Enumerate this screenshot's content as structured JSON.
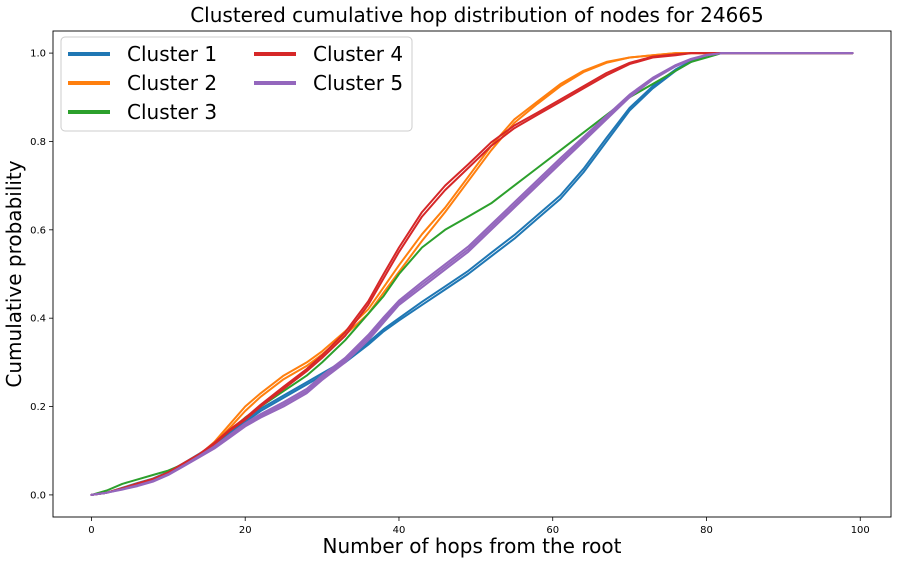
{
  "chart_data": {
    "type": "line",
    "title": "Clustered cumulative hop distribution of nodes for 24665",
    "xlabel": "Number of hops from the root",
    "ylabel": "Cumulative probability",
    "xlim": [
      -5,
      104
    ],
    "ylim": [
      -0.05,
      1.05
    ],
    "xticks": [
      0,
      20,
      40,
      60,
      80,
      100
    ],
    "xtick_labels": [
      "0",
      "20",
      "40",
      "60",
      "80",
      "100"
    ],
    "yticks": [
      0.0,
      0.2,
      0.4,
      0.6,
      0.8,
      1.0
    ],
    "ytick_labels": [
      "0.0",
      "0.2",
      "0.4",
      "0.6",
      "0.8",
      "1.0"
    ],
    "grid": false,
    "legend": {
      "placement": "top-left",
      "columns": 2
    },
    "series": [
      {
        "name": "Cluster 1",
        "color": "#1f77b4",
        "lines": [
          {
            "x": [
              0,
              2,
              4,
              6,
              8,
              10,
              12,
              14,
              16,
              18,
              20,
              22,
              25,
              28,
              30,
              33,
              36,
              38,
              40,
              43,
              46,
              49,
              52,
              55,
              58,
              61,
              64,
              67,
              70,
              73,
              76,
              78,
              80,
              82,
              84,
              90,
              99
            ],
            "y": [
              0,
              0.005,
              0.015,
              0.025,
              0.035,
              0.05,
              0.07,
              0.09,
              0.11,
              0.14,
              0.165,
              0.19,
              0.22,
              0.25,
              0.27,
              0.3,
              0.34,
              0.37,
              0.395,
              0.43,
              0.465,
              0.5,
              0.54,
              0.58,
              0.625,
              0.67,
              0.73,
              0.8,
              0.87,
              0.92,
              0.96,
              0.98,
              0.995,
              1.0,
              1.0,
              1.0,
              1.0
            ]
          },
          {
            "x": [
              0,
              2,
              4,
              6,
              8,
              10,
              12,
              14,
              16,
              18,
              20,
              22,
              25,
              28,
              30,
              33,
              36,
              38,
              40,
              43,
              46,
              49,
              52,
              55,
              58,
              61,
              64,
              67,
              70,
              73,
              76,
              78,
              80,
              82,
              84,
              90,
              99
            ],
            "y": [
              0,
              0.005,
              0.016,
              0.027,
              0.037,
              0.052,
              0.072,
              0.093,
              0.114,
              0.144,
              0.17,
              0.195,
              0.225,
              0.255,
              0.275,
              0.305,
              0.345,
              0.375,
              0.4,
              0.437,
              0.472,
              0.507,
              0.548,
              0.588,
              0.633,
              0.678,
              0.738,
              0.808,
              0.876,
              0.925,
              0.963,
              0.982,
              0.996,
              1.0,
              1.0,
              1.0,
              1.0
            ]
          }
        ]
      },
      {
        "name": "Cluster 2",
        "color": "#ff7f0e",
        "lines": [
          {
            "x": [
              0,
              2,
              4,
              6,
              8,
              10,
              12,
              14,
              16,
              18,
              20,
              22,
              25,
              28,
              30,
              33,
              36,
              38,
              40,
              43,
              46,
              49,
              52,
              55,
              58,
              61,
              64,
              67,
              70,
              73,
              76,
              78,
              80,
              84,
              99
            ],
            "y": [
              0,
              0.005,
              0.015,
              0.025,
              0.035,
              0.05,
              0.07,
              0.09,
              0.12,
              0.16,
              0.2,
              0.23,
              0.27,
              0.3,
              0.325,
              0.37,
              0.42,
              0.47,
              0.52,
              0.59,
              0.65,
              0.72,
              0.79,
              0.85,
              0.89,
              0.93,
              0.96,
              0.98,
              0.99,
              0.995,
              1.0,
              1.0,
              1.0,
              1.0,
              1.0
            ]
          },
          {
            "x": [
              0,
              2,
              4,
              6,
              8,
              10,
              12,
              14,
              16,
              18,
              20,
              22,
              25,
              28,
              30,
              33,
              36,
              38,
              40,
              43,
              46,
              49,
              52,
              55,
              58,
              61,
              64,
              67,
              70,
              73,
              76,
              78,
              80,
              84,
              99
            ],
            "y": [
              0,
              0.005,
              0.015,
              0.026,
              0.036,
              0.051,
              0.071,
              0.092,
              0.116,
              0.152,
              0.19,
              0.222,
              0.262,
              0.292,
              0.318,
              0.362,
              0.41,
              0.458,
              0.505,
              0.575,
              0.64,
              0.71,
              0.78,
              0.842,
              0.885,
              0.925,
              0.957,
              0.978,
              0.99,
              0.995,
              1.0,
              1.0,
              1.0,
              1.0,
              1.0
            ]
          }
        ]
      },
      {
        "name": "Cluster 3",
        "color": "#2ca02c",
        "lines": [
          {
            "x": [
              0,
              2,
              4,
              6,
              8,
              10,
              12,
              14,
              16,
              18,
              20,
              22,
              25,
              28,
              30,
              33,
              36,
              38,
              40,
              43,
              46,
              49,
              52,
              55,
              58,
              61,
              64,
              67,
              70,
              73,
              76,
              78,
              80,
              82,
              84,
              99
            ],
            "y": [
              0,
              0.01,
              0.025,
              0.035,
              0.045,
              0.055,
              0.07,
              0.09,
              0.115,
              0.145,
              0.175,
              0.2,
              0.235,
              0.27,
              0.3,
              0.35,
              0.41,
              0.45,
              0.5,
              0.56,
              0.6,
              0.63,
              0.66,
              0.7,
              0.74,
              0.78,
              0.82,
              0.86,
              0.9,
              0.93,
              0.96,
              0.98,
              0.99,
              1.0,
              1.0,
              1.0
            ]
          }
        ]
      },
      {
        "name": "Cluster 4",
        "color": "#d62728",
        "lines": [
          {
            "x": [
              0,
              2,
              4,
              6,
              8,
              10,
              12,
              14,
              16,
              18,
              20,
              22,
              25,
              28,
              30,
              33,
              36,
              38,
              40,
              43,
              46,
              49,
              52,
              55,
              58,
              61,
              64,
              67,
              70,
              73,
              76,
              78,
              80,
              84,
              99
            ],
            "y": [
              0,
              0.005,
              0.015,
              0.025,
              0.035,
              0.05,
              0.07,
              0.09,
              0.115,
              0.145,
              0.17,
              0.2,
              0.24,
              0.28,
              0.31,
              0.36,
              0.43,
              0.49,
              0.55,
              0.63,
              0.69,
              0.74,
              0.79,
              0.83,
              0.86,
              0.89,
              0.92,
              0.95,
              0.975,
              0.99,
              0.995,
              1.0,
              1.0,
              1.0,
              1.0
            ]
          },
          {
            "x": [
              0,
              2,
              4,
              6,
              8,
              10,
              12,
              14,
              16,
              18,
              20,
              22,
              25,
              28,
              30,
              33,
              36,
              38,
              40,
              43,
              46,
              49,
              52,
              55,
              58,
              61,
              64,
              67,
              70,
              73,
              76,
              78,
              80,
              84,
              99
            ],
            "y": [
              0,
              0.005,
              0.015,
              0.026,
              0.036,
              0.051,
              0.072,
              0.092,
              0.118,
              0.148,
              0.174,
              0.204,
              0.245,
              0.285,
              0.316,
              0.368,
              0.438,
              0.5,
              0.56,
              0.64,
              0.7,
              0.748,
              0.798,
              0.836,
              0.865,
              0.895,
              0.925,
              0.955,
              0.978,
              0.992,
              0.997,
              1.0,
              1.0,
              1.0,
              1.0
            ]
          }
        ]
      },
      {
        "name": "Cluster 5",
        "color": "#9467bd",
        "lines": [
          {
            "x": [
              0,
              2,
              4,
              6,
              8,
              10,
              12,
              14,
              16,
              18,
              20,
              22,
              25,
              28,
              30,
              33,
              36,
              38,
              40,
              43,
              46,
              49,
              52,
              55,
              58,
              61,
              64,
              67,
              70,
              73,
              76,
              78,
              80,
              82,
              84,
              90,
              99
            ],
            "y": [
              0,
              0.005,
              0.012,
              0.02,
              0.03,
              0.045,
              0.065,
              0.085,
              0.105,
              0.13,
              0.155,
              0.175,
              0.2,
              0.23,
              0.26,
              0.3,
              0.35,
              0.39,
              0.43,
              0.47,
              0.51,
              0.55,
              0.6,
              0.65,
              0.7,
              0.75,
              0.8,
              0.85,
              0.9,
              0.94,
              0.97,
              0.985,
              0.995,
              1.0,
              1.0,
              1.0,
              1.0
            ]
          },
          {
            "x": [
              0,
              2,
              4,
              6,
              8,
              10,
              12,
              14,
              16,
              18,
              20,
              22,
              25,
              28,
              30,
              33,
              36,
              38,
              40,
              43,
              46,
              49,
              52,
              55,
              58,
              61,
              64,
              67,
              70,
              73,
              76,
              78,
              80,
              82,
              84,
              90,
              99
            ],
            "y": [
              0,
              0.005,
              0.013,
              0.022,
              0.032,
              0.047,
              0.067,
              0.088,
              0.11,
              0.136,
              0.162,
              0.183,
              0.21,
              0.24,
              0.27,
              0.31,
              0.362,
              0.402,
              0.44,
              0.482,
              0.522,
              0.562,
              0.612,
              0.662,
              0.712,
              0.762,
              0.81,
              0.858,
              0.906,
              0.944,
              0.973,
              0.987,
              0.996,
              1.0,
              1.0,
              1.0,
              1.0
            ]
          },
          {
            "x": [
              0,
              2,
              4,
              6,
              8,
              10,
              12,
              14,
              16,
              18,
              20,
              22,
              25,
              28,
              30,
              33,
              36,
              38,
              40,
              43,
              46,
              49,
              52,
              55,
              58,
              61,
              64,
              67,
              70,
              73,
              76,
              78,
              80,
              82,
              84,
              90,
              99
            ],
            "y": [
              0,
              0.005,
              0.013,
              0.021,
              0.031,
              0.046,
              0.066,
              0.086,
              0.108,
              0.133,
              0.158,
              0.179,
              0.205,
              0.235,
              0.265,
              0.305,
              0.356,
              0.396,
              0.435,
              0.476,
              0.516,
              0.556,
              0.606,
              0.656,
              0.706,
              0.756,
              0.805,
              0.854,
              0.903,
              0.942,
              0.971,
              0.986,
              0.995,
              1.0,
              1.0,
              1.0,
              1.0
            ]
          }
        ]
      }
    ]
  }
}
